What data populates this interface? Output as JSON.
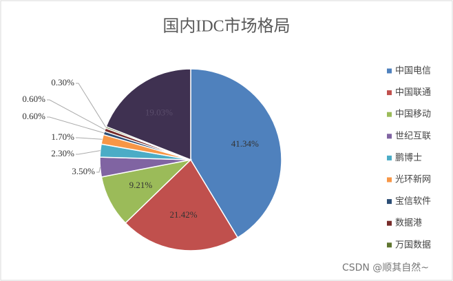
{
  "chart_data": {
    "type": "pie",
    "title": "国内IDC市场格局",
    "categories": [
      "中国电信",
      "中国联通",
      "中国移动",
      "世纪互联",
      "鹏博士",
      "光环新网",
      "宝信软件",
      "数据港",
      "万国数据",
      null
    ],
    "values": [
      41.34,
      21.42,
      9.21,
      3.5,
      2.3,
      1.7,
      0.6,
      0.6,
      0.3,
      19.03
    ],
    "value_labels": [
      "41.34%",
      "21.42%",
      "9.21%",
      "3.50%",
      "2.30%",
      "1.70%",
      "0.60%",
      "0.60%",
      "0.30%",
      "19.03%"
    ],
    "colors": [
      "#4f81bd",
      "#c0504d",
      "#9bbb59",
      "#8064a2",
      "#4bacc6",
      "#f79646",
      "#2c4d75",
      "#772c2a",
      "#5f7530",
      "#3f3151"
    ],
    "legend": "right"
  },
  "watermark": "CSDN @顺其自然~"
}
